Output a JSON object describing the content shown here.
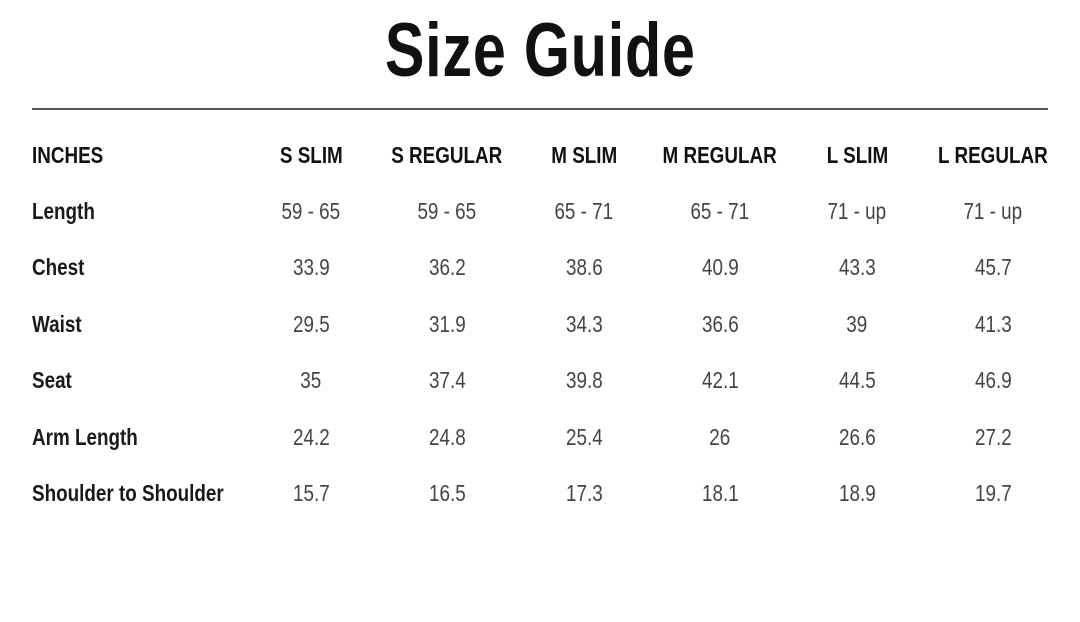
{
  "title": "Size Guide",
  "table": {
    "unit_header": "INCHES",
    "columns": [
      "S SLIM",
      "S REGULAR",
      "M SLIM",
      "M REGULAR",
      "L SLIM",
      "L REGULAR"
    ],
    "rows": [
      {
        "label": "Length",
        "values": [
          "59 - 65",
          "59 - 65",
          "65 - 71",
          "65 - 71",
          "71 - up",
          "71 - up"
        ]
      },
      {
        "label": "Chest",
        "values": [
          "33.9",
          "36.2",
          "38.6",
          "40.9",
          "43.3",
          "45.7"
        ]
      },
      {
        "label": "Waist",
        "values": [
          "29.5",
          "31.9",
          "34.3",
          "36.6",
          "39",
          "41.3"
        ]
      },
      {
        "label": "Seat",
        "values": [
          "35",
          "37.4",
          "39.8",
          "42.1",
          "44.5",
          "46.9"
        ]
      },
      {
        "label": "Arm Length",
        "values": [
          "24.2",
          "24.8",
          "25.4",
          "26",
          "26.6",
          "27.2"
        ]
      },
      {
        "label": "Shoulder to Shoulder",
        "values": [
          "15.7",
          "16.5",
          "17.3",
          "18.1",
          "18.9",
          "19.7"
        ]
      }
    ]
  }
}
